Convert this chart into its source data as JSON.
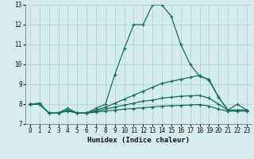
{
  "xlabel": "Humidex (Indice chaleur)",
  "xlim": [
    -0.5,
    23.5
  ],
  "ylim": [
    7,
    13
  ],
  "xticks": [
    0,
    1,
    2,
    3,
    4,
    5,
    6,
    7,
    8,
    9,
    10,
    11,
    12,
    13,
    14,
    15,
    16,
    17,
    18,
    19,
    20,
    21,
    22,
    23
  ],
  "yticks": [
    7,
    8,
    9,
    10,
    11,
    12,
    13
  ],
  "bg_color": "#d4eceb",
  "grid_color": "#b8d8d6",
  "line_color": "#1a6b60",
  "lines": [
    {
      "x": [
        0,
        1,
        2,
        3,
        4,
        5,
        6,
        7,
        8,
        9,
        10,
        11,
        12,
        13,
        14,
        15,
        16,
        17,
        18,
        19,
        20,
        21,
        22,
        23
      ],
      "y": [
        8.0,
        8.05,
        7.55,
        7.55,
        7.8,
        7.55,
        7.55,
        7.8,
        8.0,
        9.5,
        10.8,
        12.0,
        12.0,
        13.0,
        13.0,
        12.4,
        11.0,
        10.0,
        9.4,
        9.25,
        8.35,
        7.7,
        8.0,
        7.7
      ]
    },
    {
      "x": [
        0,
        1,
        2,
        3,
        4,
        5,
        6,
        7,
        8,
        9,
        10,
        11,
        12,
        13,
        14,
        15,
        16,
        17,
        18,
        19,
        20,
        21,
        22,
        23
      ],
      "y": [
        8.0,
        8.0,
        7.55,
        7.55,
        7.7,
        7.55,
        7.55,
        7.7,
        7.85,
        8.05,
        8.25,
        8.45,
        8.65,
        8.85,
        9.05,
        9.15,
        9.25,
        9.35,
        9.45,
        9.2,
        8.35,
        7.7,
        7.7,
        7.7
      ]
    },
    {
      "x": [
        0,
        1,
        2,
        3,
        4,
        5,
        6,
        7,
        8,
        9,
        10,
        11,
        12,
        13,
        14,
        15,
        16,
        17,
        18,
        19,
        20,
        21,
        22,
        23
      ],
      "y": [
        8.0,
        8.0,
        7.55,
        7.55,
        7.7,
        7.55,
        7.55,
        7.65,
        7.75,
        7.85,
        7.95,
        8.05,
        8.15,
        8.2,
        8.3,
        8.35,
        8.4,
        8.42,
        8.44,
        8.3,
        8.0,
        7.7,
        7.7,
        7.7
      ]
    },
    {
      "x": [
        0,
        1,
        2,
        3,
        4,
        5,
        6,
        7,
        8,
        9,
        10,
        11,
        12,
        13,
        14,
        15,
        16,
        17,
        18,
        19,
        20,
        21,
        22,
        23
      ],
      "y": [
        8.0,
        8.0,
        7.55,
        7.55,
        7.65,
        7.55,
        7.55,
        7.6,
        7.65,
        7.7,
        7.75,
        7.78,
        7.82,
        7.86,
        7.9,
        7.92,
        7.94,
        7.96,
        7.98,
        7.9,
        7.75,
        7.65,
        7.65,
        7.65
      ]
    }
  ]
}
